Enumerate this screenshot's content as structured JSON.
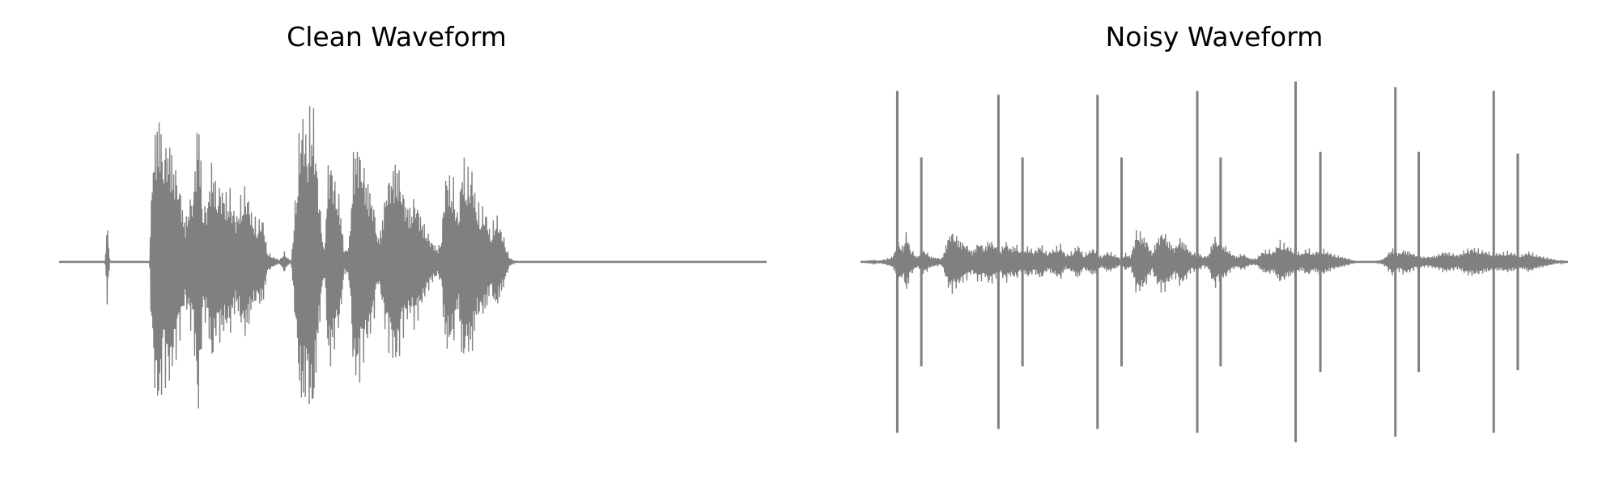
{
  "chart_data": [
    {
      "type": "line",
      "title": "Clean Waveform",
      "xlabel": "",
      "ylabel": "",
      "grid": false,
      "axes_visible": false,
      "line_color": "#808080",
      "x_range": [
        0,
        1
      ],
      "y_range": [
        -1,
        1
      ],
      "envelope": [
        {
          "x": 0.0,
          "a": 0.0
        },
        {
          "x": 0.065,
          "a": 0.0
        },
        {
          "x": 0.068,
          "a": 0.24
        },
        {
          "x": 0.07,
          "a": 0.1
        },
        {
          "x": 0.072,
          "a": 0.0
        },
        {
          "x": 0.128,
          "a": 0.0
        },
        {
          "x": 0.132,
          "a": 0.6
        },
        {
          "x": 0.138,
          "a": 0.8
        },
        {
          "x": 0.142,
          "a": 0.88
        },
        {
          "x": 0.147,
          "a": 0.6
        },
        {
          "x": 0.152,
          "a": 0.7
        },
        {
          "x": 0.157,
          "a": 0.68
        },
        {
          "x": 0.162,
          "a": 0.58
        },
        {
          "x": 0.17,
          "a": 0.45
        },
        {
          "x": 0.178,
          "a": 0.22
        },
        {
          "x": 0.184,
          "a": 0.35
        },
        {
          "x": 0.19,
          "a": 0.4
        },
        {
          "x": 0.197,
          "a": 0.92
        },
        {
          "x": 0.203,
          "a": 0.3
        },
        {
          "x": 0.21,
          "a": 0.35
        },
        {
          "x": 0.217,
          "a": 0.62
        },
        {
          "x": 0.222,
          "a": 0.4
        },
        {
          "x": 0.229,
          "a": 0.45
        },
        {
          "x": 0.235,
          "a": 0.38
        },
        {
          "x": 0.242,
          "a": 0.4
        },
        {
          "x": 0.25,
          "a": 0.25
        },
        {
          "x": 0.258,
          "a": 0.38
        },
        {
          "x": 0.265,
          "a": 0.43
        },
        {
          "x": 0.272,
          "a": 0.28
        },
        {
          "x": 0.28,
          "a": 0.22
        },
        {
          "x": 0.288,
          "a": 0.26
        },
        {
          "x": 0.294,
          "a": 0.06
        },
        {
          "x": 0.302,
          "a": 0.03
        },
        {
          "x": 0.312,
          "a": 0.01
        },
        {
          "x": 0.318,
          "a": 0.06
        },
        {
          "x": 0.322,
          "a": 0.03
        },
        {
          "x": 0.328,
          "a": 0.0
        },
        {
          "x": 0.334,
          "a": 0.35
        },
        {
          "x": 0.34,
          "a": 0.75
        },
        {
          "x": 0.344,
          "a": 0.88
        },
        {
          "x": 0.35,
          "a": 0.7
        },
        {
          "x": 0.358,
          "a": 0.95
        },
        {
          "x": 0.364,
          "a": 0.6
        },
        {
          "x": 0.37,
          "a": 0.25
        },
        {
          "x": 0.375,
          "a": 0.06
        },
        {
          "x": 0.38,
          "a": 0.55
        },
        {
          "x": 0.385,
          "a": 0.6
        },
        {
          "x": 0.39,
          "a": 0.45
        },
        {
          "x": 0.397,
          "a": 0.35
        },
        {
          "x": 0.403,
          "a": 0.06
        },
        {
          "x": 0.41,
          "a": 0.1
        },
        {
          "x": 0.416,
          "a": 0.62
        },
        {
          "x": 0.422,
          "a": 0.7
        },
        {
          "x": 0.43,
          "a": 0.55
        },
        {
          "x": 0.437,
          "a": 0.45
        },
        {
          "x": 0.444,
          "a": 0.35
        },
        {
          "x": 0.451,
          "a": 0.12
        },
        {
          "x": 0.457,
          "a": 0.25
        },
        {
          "x": 0.463,
          "a": 0.45
        },
        {
          "x": 0.47,
          "a": 0.52
        },
        {
          "x": 0.477,
          "a": 0.6
        },
        {
          "x": 0.484,
          "a": 0.45
        },
        {
          "x": 0.49,
          "a": 0.35
        },
        {
          "x": 0.497,
          "a": 0.3
        },
        {
          "x": 0.503,
          "a": 0.38
        },
        {
          "x": 0.51,
          "a": 0.28
        },
        {
          "x": 0.517,
          "a": 0.2
        },
        {
          "x": 0.524,
          "a": 0.14
        },
        {
          "x": 0.53,
          "a": 0.1
        },
        {
          "x": 0.536,
          "a": 0.08
        },
        {
          "x": 0.541,
          "a": 0.15
        },
        {
          "x": 0.546,
          "a": 0.52
        },
        {
          "x": 0.552,
          "a": 0.48
        },
        {
          "x": 0.558,
          "a": 0.45
        },
        {
          "x": 0.564,
          "a": 0.25
        },
        {
          "x": 0.57,
          "a": 0.6
        },
        {
          "x": 0.577,
          "a": 0.5
        },
        {
          "x": 0.583,
          "a": 0.55
        },
        {
          "x": 0.59,
          "a": 0.33
        },
        {
          "x": 0.597,
          "a": 0.3
        },
        {
          "x": 0.603,
          "a": 0.3
        },
        {
          "x": 0.61,
          "a": 0.15
        },
        {
          "x": 0.617,
          "a": 0.28
        },
        {
          "x": 0.624,
          "a": 0.2
        },
        {
          "x": 0.63,
          "a": 0.12
        },
        {
          "x": 0.636,
          "a": 0.03
        },
        {
          "x": 0.645,
          "a": 0.0
        },
        {
          "x": 1.0,
          "a": 0.0
        }
      ],
      "spikes": []
    },
    {
      "type": "line",
      "title": "Noisy Waveform",
      "xlabel": "",
      "ylabel": "",
      "grid": false,
      "axes_visible": false,
      "line_color": "#808080",
      "x_range": [
        0,
        1
      ],
      "y_range": [
        -1,
        1
      ],
      "envelope": [
        {
          "x": 0.0,
          "a": 0.0
        },
        {
          "x": 0.03,
          "a": 0.01
        },
        {
          "x": 0.045,
          "a": 0.03
        },
        {
          "x": 0.055,
          "a": 0.12
        },
        {
          "x": 0.06,
          "a": 0.08
        },
        {
          "x": 0.065,
          "a": 0.18
        },
        {
          "x": 0.07,
          "a": 0.08
        },
        {
          "x": 0.08,
          "a": 0.03
        },
        {
          "x": 0.09,
          "a": 0.07
        },
        {
          "x": 0.1,
          "a": 0.03
        },
        {
          "x": 0.115,
          "a": 0.02
        },
        {
          "x": 0.127,
          "a": 0.18
        },
        {
          "x": 0.135,
          "a": 0.15
        },
        {
          "x": 0.142,
          "a": 0.12
        },
        {
          "x": 0.15,
          "a": 0.1
        },
        {
          "x": 0.158,
          "a": 0.06
        },
        {
          "x": 0.168,
          "a": 0.12
        },
        {
          "x": 0.175,
          "a": 0.08
        },
        {
          "x": 0.182,
          "a": 0.13
        },
        {
          "x": 0.19,
          "a": 0.1
        },
        {
          "x": 0.197,
          "a": 0.06
        },
        {
          "x": 0.205,
          "a": 0.12
        },
        {
          "x": 0.212,
          "a": 0.08
        },
        {
          "x": 0.22,
          "a": 0.1
        },
        {
          "x": 0.228,
          "a": 0.05
        },
        {
          "x": 0.237,
          "a": 0.09
        },
        {
          "x": 0.245,
          "a": 0.06
        },
        {
          "x": 0.255,
          "a": 0.1
        },
        {
          "x": 0.264,
          "a": 0.05
        },
        {
          "x": 0.275,
          "a": 0.08
        },
        {
          "x": 0.283,
          "a": 0.1
        },
        {
          "x": 0.29,
          "a": 0.04
        },
        {
          "x": 0.3,
          "a": 0.06
        },
        {
          "x": 0.308,
          "a": 0.1
        },
        {
          "x": 0.315,
          "a": 0.04
        },
        {
          "x": 0.322,
          "a": 0.06
        },
        {
          "x": 0.33,
          "a": 0.08
        },
        {
          "x": 0.34,
          "a": 0.03
        },
        {
          "x": 0.35,
          "a": 0.06
        },
        {
          "x": 0.36,
          "a": 0.04
        },
        {
          "x": 0.368,
          "a": 0.02
        },
        {
          "x": 0.375,
          "a": 0.05
        },
        {
          "x": 0.382,
          "a": 0.03
        },
        {
          "x": 0.39,
          "a": 0.18
        },
        {
          "x": 0.398,
          "a": 0.16
        },
        {
          "x": 0.405,
          "a": 0.12
        },
        {
          "x": 0.412,
          "a": 0.05
        },
        {
          "x": 0.42,
          "a": 0.14
        },
        {
          "x": 0.428,
          "a": 0.18
        },
        {
          "x": 0.436,
          "a": 0.12
        },
        {
          "x": 0.444,
          "a": 0.08
        },
        {
          "x": 0.452,
          "a": 0.14
        },
        {
          "x": 0.46,
          "a": 0.1
        },
        {
          "x": 0.468,
          "a": 0.05
        },
        {
          "x": 0.476,
          "a": 0.06
        },
        {
          "x": 0.484,
          "a": 0.03
        },
        {
          "x": 0.492,
          "a": 0.04
        },
        {
          "x": 0.5,
          "a": 0.15
        },
        {
          "x": 0.508,
          "a": 0.1
        },
        {
          "x": 0.516,
          "a": 0.09
        },
        {
          "x": 0.524,
          "a": 0.05
        },
        {
          "x": 0.532,
          "a": 0.03
        },
        {
          "x": 0.54,
          "a": 0.05
        },
        {
          "x": 0.55,
          "a": 0.02
        },
        {
          "x": 0.56,
          "a": 0.02
        },
        {
          "x": 0.568,
          "a": 0.06
        },
        {
          "x": 0.576,
          "a": 0.07
        },
        {
          "x": 0.584,
          "a": 0.06
        },
        {
          "x": 0.592,
          "a": 0.12
        },
        {
          "x": 0.6,
          "a": 0.1
        },
        {
          "x": 0.608,
          "a": 0.08
        },
        {
          "x": 0.616,
          "a": 0.06
        },
        {
          "x": 0.624,
          "a": 0.05
        },
        {
          "x": 0.632,
          "a": 0.08
        },
        {
          "x": 0.64,
          "a": 0.05
        },
        {
          "x": 0.65,
          "a": 0.08
        },
        {
          "x": 0.66,
          "a": 0.06
        },
        {
          "x": 0.67,
          "a": 0.04
        },
        {
          "x": 0.68,
          "a": 0.03
        },
        {
          "x": 0.69,
          "a": 0.02
        },
        {
          "x": 0.7,
          "a": 0.0
        },
        {
          "x": 0.71,
          "a": 0.0
        },
        {
          "x": 0.72,
          "a": 0.0
        },
        {
          "x": 0.728,
          "a": 0.0
        },
        {
          "x": 0.74,
          "a": 0.02
        },
        {
          "x": 0.752,
          "a": 0.08
        },
        {
          "x": 0.76,
          "a": 0.05
        },
        {
          "x": 0.768,
          "a": 0.07
        },
        {
          "x": 0.776,
          "a": 0.06
        },
        {
          "x": 0.785,
          "a": 0.04
        },
        {
          "x": 0.795,
          "a": 0.03
        },
        {
          "x": 0.805,
          "a": 0.03
        },
        {
          "x": 0.815,
          "a": 0.04
        },
        {
          "x": 0.825,
          "a": 0.06
        },
        {
          "x": 0.835,
          "a": 0.05
        },
        {
          "x": 0.845,
          "a": 0.04
        },
        {
          "x": 0.855,
          "a": 0.07
        },
        {
          "x": 0.865,
          "a": 0.08
        },
        {
          "x": 0.875,
          "a": 0.07
        },
        {
          "x": 0.885,
          "a": 0.06
        },
        {
          "x": 0.895,
          "a": 0.05
        },
        {
          "x": 0.905,
          "a": 0.05
        },
        {
          "x": 0.915,
          "a": 0.06
        },
        {
          "x": 0.925,
          "a": 0.05
        },
        {
          "x": 0.935,
          "a": 0.04
        },
        {
          "x": 0.945,
          "a": 0.06
        },
        {
          "x": 0.955,
          "a": 0.04
        },
        {
          "x": 0.965,
          "a": 0.03
        },
        {
          "x": 0.975,
          "a": 0.02
        },
        {
          "x": 0.985,
          "a": 0.01
        },
        {
          "x": 1.0,
          "a": 0.0
        }
      ],
      "spikes": [
        {
          "x": 0.052,
          "a": 0.9
        },
        {
          "x": 0.086,
          "a": 0.55
        },
        {
          "x": 0.195,
          "a": 0.88
        },
        {
          "x": 0.229,
          "a": 0.55
        },
        {
          "x": 0.335,
          "a": 0.88
        },
        {
          "x": 0.369,
          "a": 0.55
        },
        {
          "x": 0.476,
          "a": 0.9
        },
        {
          "x": 0.509,
          "a": 0.55
        },
        {
          "x": 0.615,
          "a": 0.95
        },
        {
          "x": 0.65,
          "a": 0.58
        },
        {
          "x": 0.756,
          "a": 0.92
        },
        {
          "x": 0.789,
          "a": 0.58
        },
        {
          "x": 0.895,
          "a": 0.9
        },
        {
          "x": 0.929,
          "a": 0.57
        }
      ]
    }
  ]
}
